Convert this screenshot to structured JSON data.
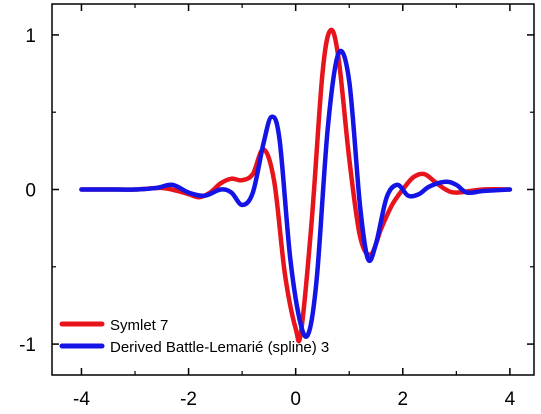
{
  "chart_data": {
    "type": "line",
    "title": "",
    "xlabel": "",
    "ylabel": "",
    "xlim": [
      -4.55,
      4.45
    ],
    "ylim": [
      -1.2,
      1.2
    ],
    "xticks": [
      -4,
      -2,
      0,
      2,
      4
    ],
    "xtick_labels": [
      "-4",
      "-2",
      "0",
      "2",
      "4"
    ],
    "yticks": [
      -1,
      0,
      1
    ],
    "ytick_labels": [
      "-1",
      "0",
      "1"
    ],
    "grid": false,
    "legend_position": "bottom-left",
    "series": [
      {
        "name": "Symlet 7",
        "color": "#e8141c",
        "x": [
          -4.0,
          -3.5,
          -3.0,
          -2.5,
          -2.2,
          -2.0,
          -1.8,
          -1.6,
          -1.4,
          -1.2,
          -1.0,
          -0.8,
          -0.6,
          -0.4,
          -0.2,
          0.0,
          0.1,
          0.3,
          0.5,
          0.65,
          0.8,
          1.0,
          1.2,
          1.4,
          1.6,
          1.8,
          2.0,
          2.2,
          2.4,
          2.6,
          2.8,
          3.0,
          3.5,
          4.0
        ],
        "y": [
          0.0,
          0.0,
          0.0,
          0.01,
          -0.01,
          -0.03,
          -0.05,
          -0.02,
          0.04,
          0.07,
          0.06,
          0.1,
          0.26,
          0.05,
          -0.55,
          -0.9,
          -0.92,
          -0.2,
          0.75,
          1.03,
          0.85,
          0.2,
          -0.3,
          -0.42,
          -0.25,
          -0.1,
          0.0,
          0.08,
          0.1,
          0.05,
          0.0,
          -0.02,
          0.0,
          0.0
        ]
      },
      {
        "name": "Derived Battle-Lemarié (spline) 3",
        "color": "#1414e6",
        "x": [
          -4.0,
          -3.5,
          -3.0,
          -2.6,
          -2.3,
          -2.0,
          -1.7,
          -1.4,
          -1.2,
          -1.0,
          -0.8,
          -0.6,
          -0.45,
          -0.3,
          -0.1,
          0.1,
          0.25,
          0.4,
          0.6,
          0.8,
          1.0,
          1.2,
          1.35,
          1.5,
          1.7,
          1.9,
          2.1,
          2.3,
          2.5,
          2.8,
          3.0,
          3.2,
          3.5,
          4.0
        ],
        "y": [
          0.0,
          0.0,
          0.0,
          0.01,
          0.03,
          -0.02,
          -0.04,
          0.0,
          -0.02,
          -0.1,
          -0.02,
          0.3,
          0.47,
          0.32,
          -0.45,
          -0.88,
          -0.92,
          -0.55,
          0.4,
          0.88,
          0.7,
          -0.1,
          -0.45,
          -0.35,
          -0.05,
          0.03,
          -0.04,
          -0.03,
          0.02,
          0.05,
          0.03,
          -0.02,
          -0.01,
          0.0
        ]
      }
    ]
  }
}
